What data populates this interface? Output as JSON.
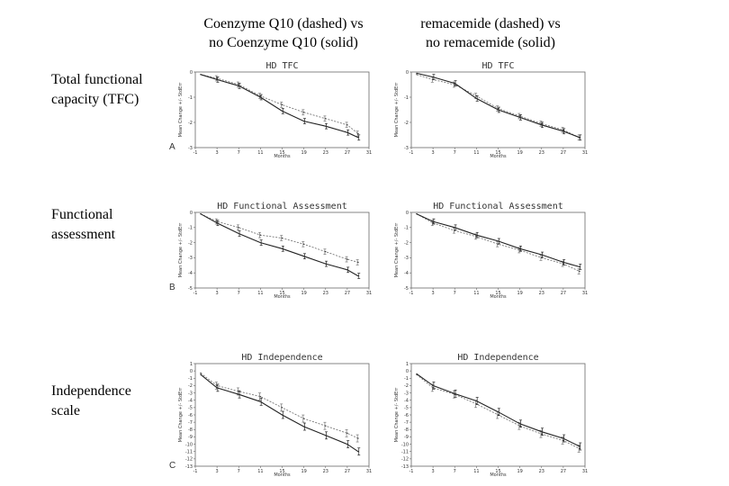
{
  "columns": [
    {
      "line1": "Coenzyme Q10 (dashed) vs",
      "line2": "no Coenzyme Q10 (solid)"
    },
    {
      "line1": "remacemide (dashed) vs",
      "line2": "no remacemide (solid)"
    }
  ],
  "rows": [
    {
      "line1": "Total functional",
      "line2": "capacity (TFC)"
    },
    {
      "line1": "Functional",
      "line2": "assessment"
    },
    {
      "line1": "Independence",
      "line2": "scale"
    }
  ],
  "chart_data": [
    {
      "type": "line",
      "title": "HD TFC",
      "letter": "A",
      "xlabel": "Months",
      "ylabel": "Mean Change +/- StdErr",
      "xlim": [
        -1,
        31
      ],
      "ylim": [
        -3,
        0
      ],
      "xticks": [
        -1,
        3,
        7,
        11,
        15,
        19,
        23,
        27,
        31
      ],
      "yticks": [
        0,
        -1,
        -2,
        -3
      ],
      "x": [
        0,
        3,
        7,
        11,
        15,
        19,
        23,
        27,
        29
      ],
      "series": [
        {
          "name": "Coenzyme Q10",
          "style": "dashed",
          "values": [
            -0.1,
            -0.25,
            -0.5,
            -0.95,
            -1.3,
            -1.6,
            -1.85,
            -2.1,
            -2.45
          ]
        },
        {
          "name": "no Coenzyme Q10",
          "style": "solid",
          "values": [
            -0.1,
            -0.3,
            -0.55,
            -1.0,
            -1.55,
            -1.95,
            -2.15,
            -2.4,
            -2.6
          ]
        }
      ]
    },
    {
      "type": "line",
      "title": "HD TFC",
      "letter": "",
      "xlabel": "Months",
      "ylabel": "Mean Change +/- StdErr",
      "xlim": [
        -1,
        31
      ],
      "ylim": [
        -3,
        0
      ],
      "xticks": [
        -1,
        3,
        7,
        11,
        15,
        19,
        23,
        27,
        31
      ],
      "yticks": [
        0,
        -1,
        -2,
        -3
      ],
      "x": [
        0,
        3,
        7,
        11,
        15,
        19,
        23,
        27,
        30
      ],
      "series": [
        {
          "name": "remacemide",
          "style": "dashed",
          "values": [
            -0.1,
            -0.3,
            -0.5,
            -0.95,
            -1.45,
            -1.75,
            -2.05,
            -2.3,
            -2.6
          ]
        },
        {
          "name": "no remacemide",
          "style": "solid",
          "values": [
            -0.05,
            -0.2,
            -0.45,
            -1.05,
            -1.5,
            -1.8,
            -2.1,
            -2.35,
            -2.6
          ]
        }
      ]
    },
    {
      "type": "line",
      "title": "HD Functional Assessment",
      "letter": "B",
      "xlabel": "Months",
      "ylabel": "Mean Change +/- StdErr",
      "xlim": [
        -1,
        31
      ],
      "ylim": [
        -5,
        0
      ],
      "xticks": [
        -1,
        3,
        7,
        11,
        15,
        19,
        23,
        27,
        31
      ],
      "yticks": [
        0,
        -1,
        -2,
        -3,
        -4,
        -5
      ],
      "x": [
        0,
        3,
        7,
        11,
        15,
        19,
        23,
        27,
        29
      ],
      "series": [
        {
          "name": "Coenzyme Q10",
          "style": "dashed",
          "values": [
            -0.1,
            -0.6,
            -1.0,
            -1.5,
            -1.7,
            -2.1,
            -2.6,
            -3.1,
            -3.3
          ]
        },
        {
          "name": "no Coenzyme Q10",
          "style": "solid",
          "values": [
            -0.1,
            -0.7,
            -1.4,
            -2.0,
            -2.4,
            -2.9,
            -3.4,
            -3.8,
            -4.2
          ]
        }
      ]
    },
    {
      "type": "line",
      "title": "HD Functional Assessment",
      "letter": "",
      "xlabel": "Months",
      "ylabel": "Mean Change +/- StdErr",
      "xlim": [
        -1,
        31
      ],
      "ylim": [
        -5,
        0
      ],
      "xticks": [
        -1,
        3,
        7,
        11,
        15,
        19,
        23,
        27,
        31
      ],
      "yticks": [
        0,
        -1,
        -2,
        -3,
        -4,
        -5
      ],
      "x": [
        0,
        3,
        7,
        11,
        15,
        19,
        23,
        27,
        30
      ],
      "series": [
        {
          "name": "remacemide",
          "style": "dashed",
          "values": [
            -0.1,
            -0.7,
            -1.2,
            -1.6,
            -2.1,
            -2.5,
            -3.0,
            -3.4,
            -3.9
          ]
        },
        {
          "name": "no remacemide",
          "style": "solid",
          "values": [
            -0.1,
            -0.6,
            -1.0,
            -1.5,
            -1.9,
            -2.4,
            -2.8,
            -3.3,
            -3.6
          ]
        }
      ]
    },
    {
      "type": "line",
      "title": "HD Independence",
      "letter": "C",
      "xlabel": "Months",
      "ylabel": "Mean Change +/- StdErr",
      "xlim": [
        -1,
        31
      ],
      "ylim": [
        -13,
        1
      ],
      "xticks": [
        -1,
        3,
        7,
        11,
        15,
        19,
        23,
        27,
        31
      ],
      "yticks": [
        1,
        0,
        -1,
        -2,
        -3,
        -4,
        -5,
        -6,
        -7,
        -8,
        -9,
        -10,
        -11,
        -12,
        -13
      ],
      "x": [
        0,
        3,
        7,
        11,
        15,
        19,
        23,
        27,
        29
      ],
      "series": [
        {
          "name": "Coenzyme Q10",
          "style": "dashed",
          "values": [
            -0.3,
            -2.0,
            -2.8,
            -3.5,
            -5.0,
            -6.5,
            -7.5,
            -8.5,
            -9.2
          ]
        },
        {
          "name": "no Coenzyme Q10",
          "style": "solid",
          "values": [
            -0.5,
            -2.3,
            -3.2,
            -4.2,
            -6.0,
            -7.6,
            -8.8,
            -10.0,
            -11.0
          ]
        }
      ]
    },
    {
      "type": "line",
      "title": "HD Independence",
      "letter": "",
      "xlabel": "Months",
      "ylabel": "Mean Change +/- StdErr",
      "xlim": [
        -1,
        31
      ],
      "ylim": [
        -13,
        1
      ],
      "xticks": [
        -1,
        3,
        7,
        11,
        15,
        19,
        23,
        27,
        31
      ],
      "yticks": [
        1,
        0,
        -1,
        -2,
        -3,
        -4,
        -5,
        -6,
        -7,
        -8,
        -9,
        -10,
        -11,
        -12,
        -13
      ],
      "x": [
        0,
        3,
        7,
        11,
        15,
        19,
        23,
        27,
        30
      ],
      "series": [
        {
          "name": "remacemide",
          "style": "dashed",
          "values": [
            -0.5,
            -2.3,
            -3.2,
            -4.5,
            -6.0,
            -7.5,
            -8.6,
            -9.5,
            -10.6
          ]
        },
        {
          "name": "no remacemide",
          "style": "solid",
          "values": [
            -0.4,
            -2.0,
            -3.1,
            -4.1,
            -5.6,
            -7.2,
            -8.3,
            -9.2,
            -10.3
          ]
        }
      ]
    }
  ]
}
